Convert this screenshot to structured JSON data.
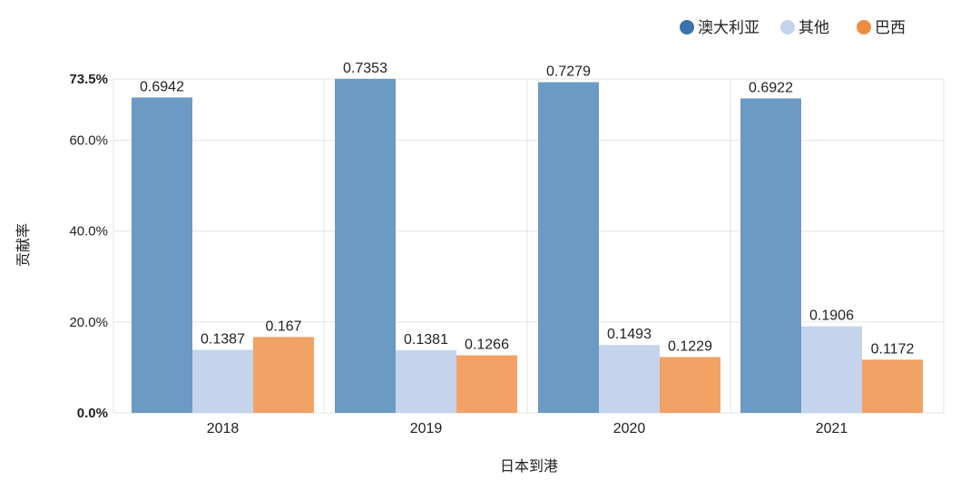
{
  "colors": {
    "series": [
      "#6b9ac4",
      "#c5d4ec",
      "#f2a264"
    ],
    "legend_markers": [
      "#3a72ad",
      "#c5d4ec",
      "#ef8c40"
    ],
    "grid": "#e3e3e3",
    "axis": "#dddddd"
  },
  "chart_data": {
    "type": "bar",
    "categories": [
      "2018",
      "2019",
      "2020",
      "2021"
    ],
    "series": [
      {
        "name": "澳大利亚",
        "values": [
          0.6942,
          0.7353,
          0.7279,
          0.6922
        ],
        "labels": [
          "0.6942",
          "0.7353",
          "0.7279",
          "0.6922"
        ]
      },
      {
        "name": "其他",
        "values": [
          0.1387,
          0.1381,
          0.1493,
          0.1906
        ],
        "labels": [
          "0.1387",
          "0.1381",
          "0.1493",
          "0.1906"
        ]
      },
      {
        "name": "巴西",
        "values": [
          0.167,
          0.1266,
          0.1229,
          0.1172
        ],
        "labels": [
          "0.167",
          "0.1266",
          "0.1229",
          "0.1172"
        ]
      }
    ],
    "xlabel": "日本到港",
    "ylabel": "贡献率",
    "ylim": [
      0,
      0.735
    ],
    "yticks": [
      {
        "value": 0,
        "label": "0.0%",
        "bold": true
      },
      {
        "value": 0.2,
        "label": "20.0%",
        "bold": false
      },
      {
        "value": 0.4,
        "label": "40.0%",
        "bold": false
      },
      {
        "value": 0.6,
        "label": "60.0%",
        "bold": false
      },
      {
        "value": 0.735,
        "label": "73.5%",
        "bold": true
      }
    ],
    "grid": true,
    "legend_position": "top-right"
  }
}
